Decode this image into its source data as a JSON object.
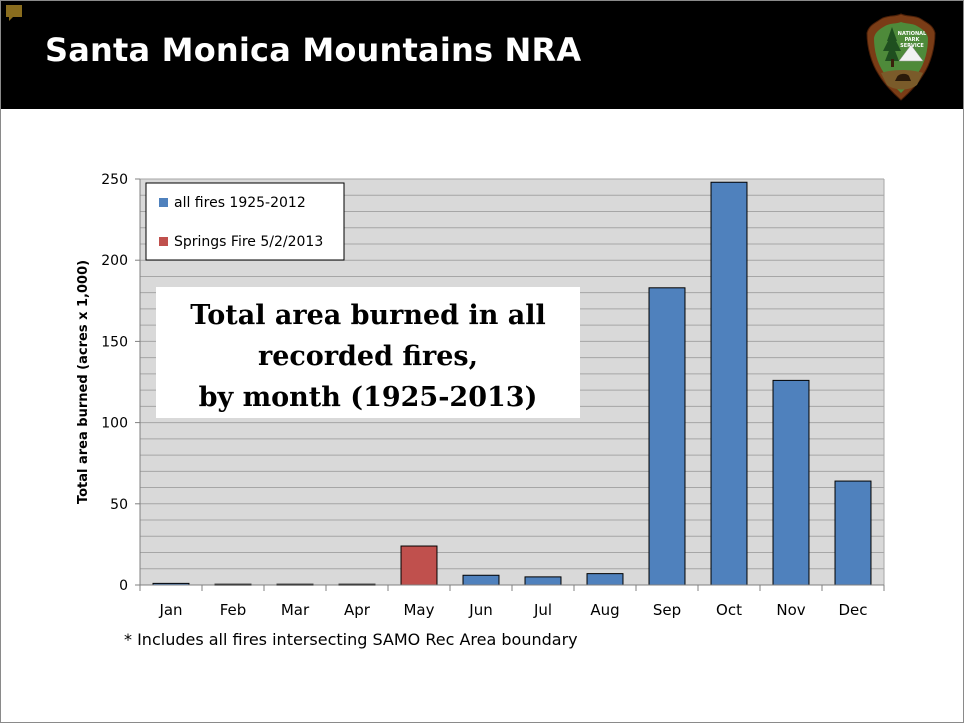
{
  "slide": {
    "title": "Santa Monica Mountains NRA",
    "logo_text": "NATIONAL PARK SERVICE",
    "footnote": "* Includes all fires intersecting SAMO Rec Area boundary"
  },
  "colors": {
    "header_bg": "#000000",
    "plot_bg": "#d9d9d9",
    "all_fires": "#4f81bd",
    "springs_fire": "#c0504d"
  },
  "chart_data": {
    "type": "bar",
    "title": "Total area burned in all recorded fires, by month (1925-2013)",
    "title_lines": [
      "Total area burned in all",
      "recorded fires,",
      "by month (1925-2013)"
    ],
    "xlabel": "",
    "ylabel": "Total area burned (acres x 1,000)",
    "ylim": [
      0,
      250
    ],
    "yticks": [
      0,
      50,
      100,
      150,
      200,
      250
    ],
    "grid": true,
    "legend": "top-left",
    "categories": [
      "Jan",
      "Feb",
      "Mar",
      "Apr",
      "May",
      "Jun",
      "Jul",
      "Aug",
      "Sep",
      "Oct",
      "Nov",
      "Dec"
    ],
    "series": [
      {
        "name": "all fires 1925-2012",
        "color": "#4f81bd",
        "values": [
          1,
          0.5,
          0.5,
          0.5,
          null,
          6,
          5,
          7,
          183,
          248,
          126,
          64
        ]
      },
      {
        "name": "Springs Fire 5/2/2013",
        "color": "#c0504d",
        "values": [
          null,
          null,
          null,
          null,
          24,
          null,
          null,
          null,
          null,
          null,
          null,
          null
        ]
      }
    ]
  }
}
